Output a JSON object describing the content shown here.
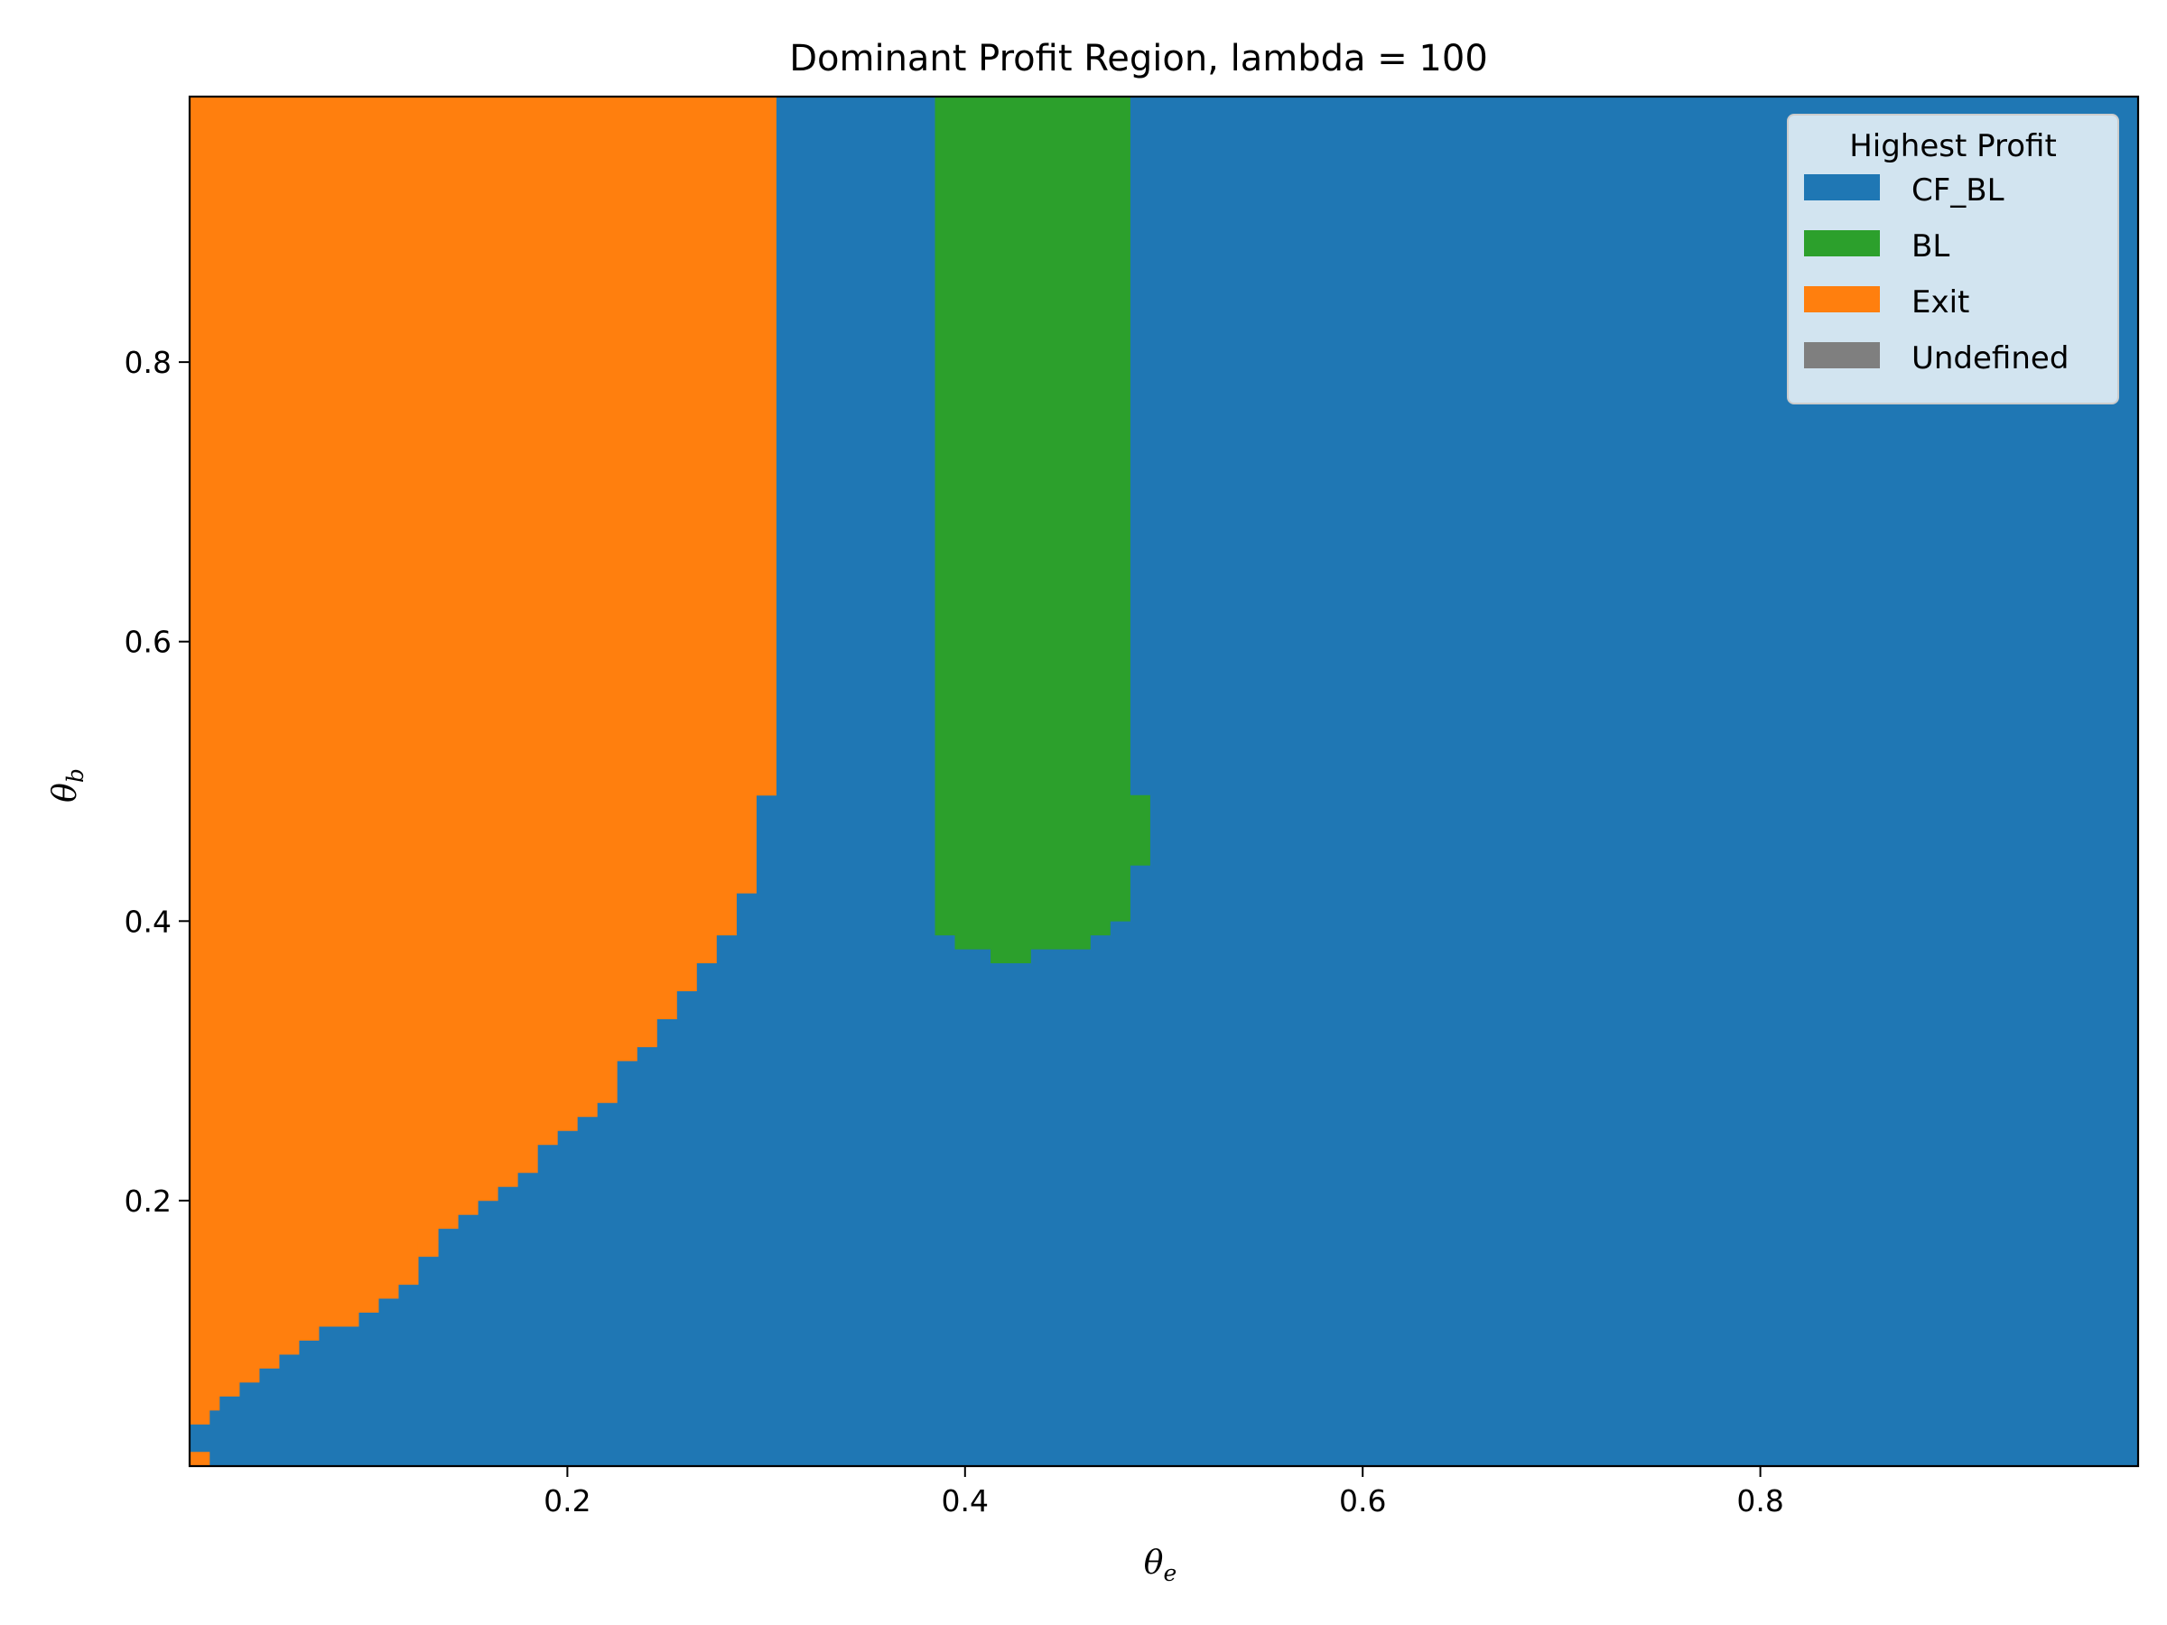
{
  "chart_data": {
    "type": "heatmap",
    "title": "Dominant Profit Region, lambda = 100",
    "xlabel": "θ",
    "xlabel_sub": "e",
    "ylabel": "θ",
    "ylabel_sub": "b",
    "xlim": [
      0.01,
      0.99
    ],
    "ylim": [
      0.01,
      0.99
    ],
    "xticks": [
      0.2,
      0.4,
      0.6,
      0.8
    ],
    "xtick_labels": [
      "0.2",
      "0.4",
      "0.6",
      "0.8"
    ],
    "yticks": [
      0.2,
      0.4,
      0.6,
      0.8
    ],
    "ytick_labels": [
      "0.2",
      "0.4",
      "0.6",
      "0.8"
    ],
    "grid": false,
    "background_category": "CF_BL",
    "legend": {
      "title": "Highest Profit",
      "placement": "top-right",
      "entries": [
        {
          "label": "CF_BL",
          "color": "#1f77b4"
        },
        {
          "label": "BL",
          "color": "#2ca02c"
        },
        {
          "label": "Exit",
          "color": "#ff7f0e"
        },
        {
          "label": "Undefined",
          "color": "#7f7f7f"
        }
      ]
    },
    "regions": [
      {
        "category": "Exit",
        "color": "#ff7f0e",
        "boundary": [
          [
            0.01,
            0.99
          ],
          [
            0.305,
            0.99
          ],
          [
            0.305,
            0.49
          ],
          [
            0.295,
            0.49
          ],
          [
            0.295,
            0.42
          ],
          [
            0.285,
            0.42
          ],
          [
            0.285,
            0.39
          ],
          [
            0.275,
            0.39
          ],
          [
            0.275,
            0.37
          ],
          [
            0.265,
            0.37
          ],
          [
            0.265,
            0.35
          ],
          [
            0.255,
            0.35
          ],
          [
            0.255,
            0.33
          ],
          [
            0.245,
            0.33
          ],
          [
            0.245,
            0.31
          ],
          [
            0.235,
            0.31
          ],
          [
            0.235,
            0.3
          ],
          [
            0.225,
            0.3
          ],
          [
            0.225,
            0.27
          ],
          [
            0.215,
            0.27
          ],
          [
            0.215,
            0.26
          ],
          [
            0.205,
            0.26
          ],
          [
            0.205,
            0.25
          ],
          [
            0.195,
            0.25
          ],
          [
            0.195,
            0.24
          ],
          [
            0.185,
            0.24
          ],
          [
            0.185,
            0.22
          ],
          [
            0.175,
            0.22
          ],
          [
            0.175,
            0.21
          ],
          [
            0.165,
            0.21
          ],
          [
            0.165,
            0.2
          ],
          [
            0.155,
            0.2
          ],
          [
            0.155,
            0.19
          ],
          [
            0.145,
            0.19
          ],
          [
            0.145,
            0.18
          ],
          [
            0.135,
            0.18
          ],
          [
            0.135,
            0.17
          ],
          [
            0.125,
            0.17
          ],
          [
            0.125,
            0.14
          ],
          [
            0.115,
            0.14
          ],
          [
            0.115,
            0.13
          ],
          [
            0.105,
            0.13
          ],
          [
            0.105,
            0.12
          ],
          [
            0.095,
            0.12
          ],
          [
            0.095,
            0.11
          ],
          [
            0.075,
            0.11
          ],
          [
            0.075,
            0.1
          ],
          [
            0.065,
            0.1
          ],
          [
            0.065,
            0.09
          ],
          [
            0.055,
            0.09
          ],
          [
            0.055,
            0.08
          ],
          [
            0.045,
            0.08
          ],
          [
            0.045,
            0.07
          ],
          [
            0.035,
            0.07
          ],
          [
            0.035,
            0.06
          ],
          [
            0.025,
            0.06
          ],
          [
            0.025,
            0.05
          ],
          [
            0.02,
            0.05
          ],
          [
            0.02,
            0.04
          ],
          [
            0.01,
            0.04
          ]
        ]
      },
      {
        "category": "Exit",
        "color": "#ff7f0e",
        "boundary": [
          [
            0.01,
            0.01
          ],
          [
            0.02,
            0.01
          ],
          [
            0.02,
            0.02
          ],
          [
            0.01,
            0.02
          ]
        ]
      },
      {
        "category": "Exit",
        "color": "#ff7f0e",
        "boundary": [
          [
            0.125,
            0.16
          ],
          [
            0.135,
            0.16
          ],
          [
            0.135,
            0.17
          ],
          [
            0.125,
            0.17
          ]
        ]
      },
      {
        "category": "BL",
        "color": "#2ca02c",
        "boundary": [
          [
            0.385,
            0.99
          ],
          [
            0.483,
            0.99
          ],
          [
            0.483,
            0.49
          ],
          [
            0.493,
            0.49
          ],
          [
            0.493,
            0.44
          ],
          [
            0.483,
            0.44
          ],
          [
            0.483,
            0.4
          ],
          [
            0.473,
            0.4
          ],
          [
            0.473,
            0.39
          ],
          [
            0.463,
            0.39
          ],
          [
            0.463,
            0.38
          ],
          [
            0.433,
            0.38
          ],
          [
            0.433,
            0.37
          ],
          [
            0.413,
            0.37
          ],
          [
            0.413,
            0.38
          ],
          [
            0.395,
            0.38
          ],
          [
            0.395,
            0.39
          ],
          [
            0.385,
            0.39
          ]
        ]
      }
    ]
  }
}
